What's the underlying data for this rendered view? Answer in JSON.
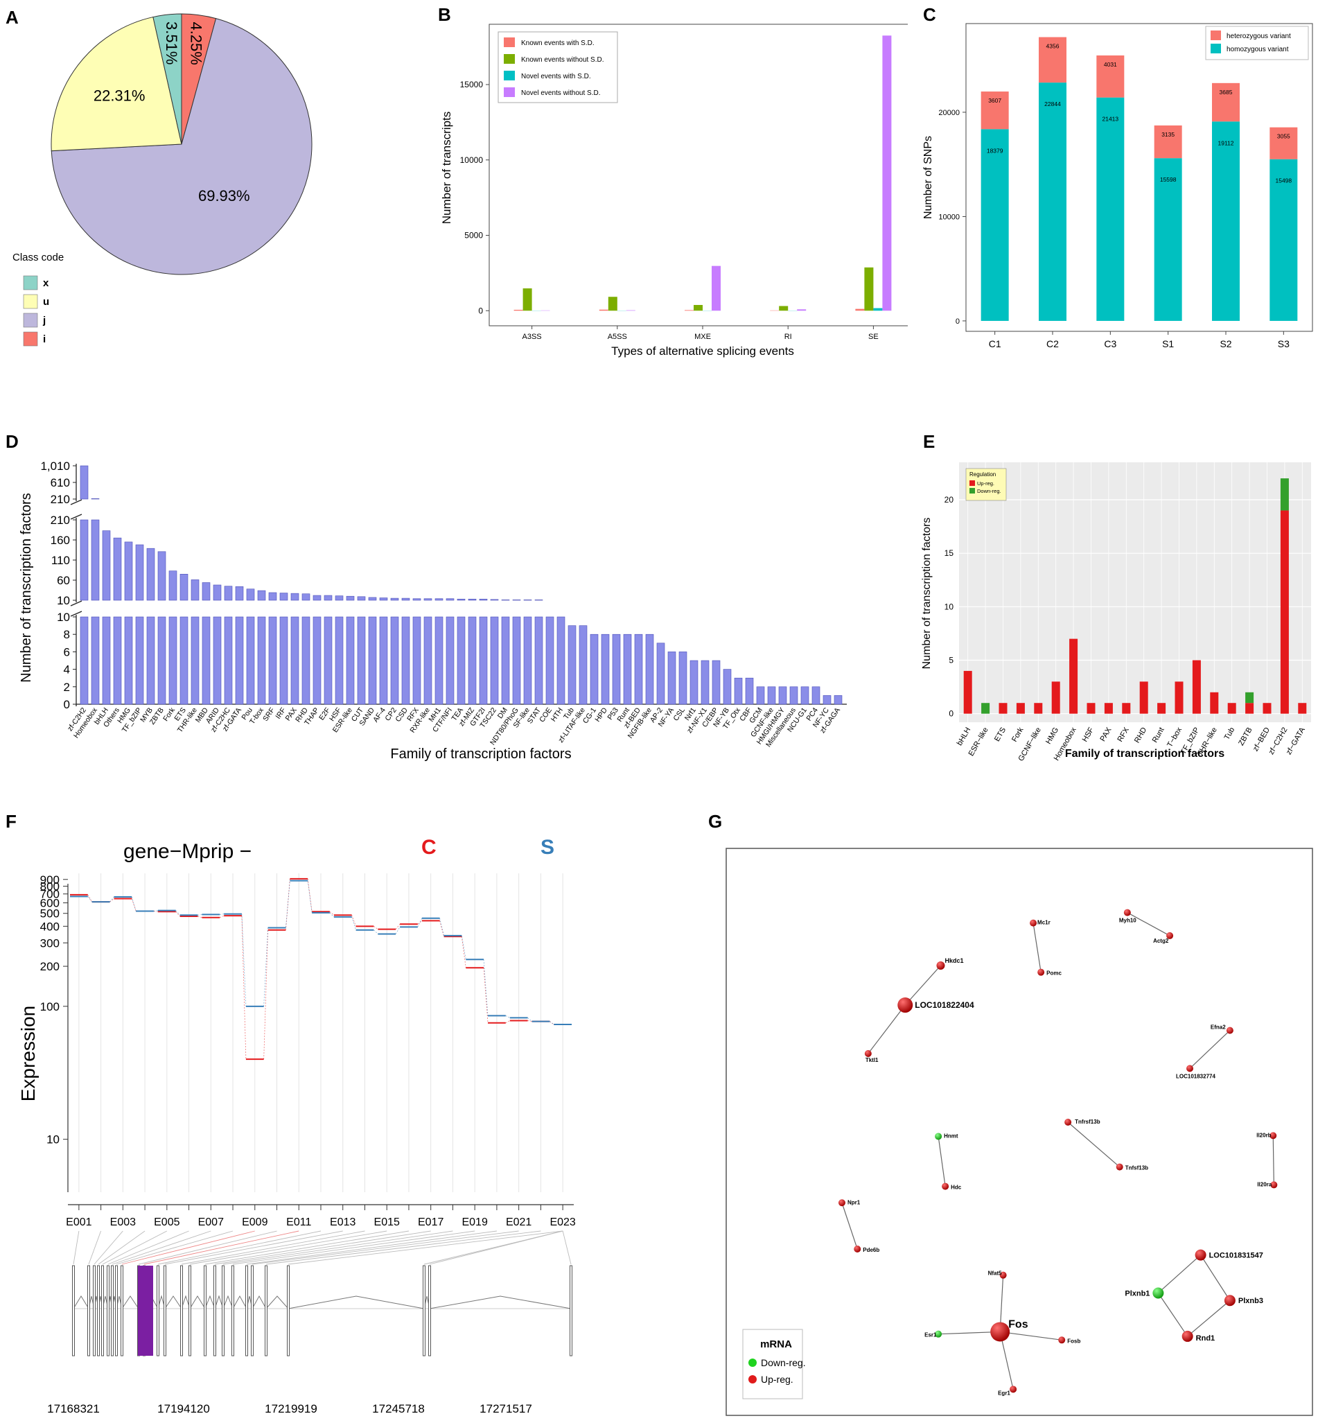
{
  "panels": {
    "a": "A",
    "b": "B",
    "c": "C",
    "d": "D",
    "e": "E",
    "f": "F",
    "g": "G"
  },
  "chart_data": [
    {
      "id": "A",
      "type": "pie",
      "legend_title": "Class code",
      "slices": [
        {
          "label": "i",
          "value": 4.25,
          "text": "4.25%",
          "color": "#f8776c"
        },
        {
          "label": "j",
          "value": 69.93,
          "text": "69.93%",
          "color": "#bdb7dc"
        },
        {
          "label": "u",
          "value": 22.31,
          "text": "22.31%",
          "color": "#fefeb5"
        },
        {
          "label": "x",
          "value": 3.51,
          "text": "3.51%",
          "color": "#8dd3c7"
        }
      ],
      "legend": [
        {
          "label": "x",
          "color": "#8dd3c7"
        },
        {
          "label": "u",
          "color": "#fefeb5"
        },
        {
          "label": "j",
          "color": "#bdb7dc"
        },
        {
          "label": "i",
          "color": "#f8776c"
        }
      ]
    },
    {
      "id": "B",
      "type": "bar",
      "xlabel": "Types of alternative splicing events",
      "ylabel": "Number of transcripts",
      "categories": [
        "A3SS",
        "A5SS",
        "MXE",
        "RI",
        "SE"
      ],
      "ylim": [
        -1000,
        19000
      ],
      "yticks": [
        0,
        5000,
        10000,
        15000
      ],
      "series": [
        {
          "name": "Known events with S.D.",
          "color": "#f8766d",
          "values": [
            60,
            70,
            40,
            20,
            120
          ]
        },
        {
          "name": "Known events without S.D.",
          "color": "#7cae00",
          "values": [
            1480,
            920,
            380,
            310,
            2870
          ]
        },
        {
          "name": "Novel events with S.D.",
          "color": "#00bfc4",
          "values": [
            10,
            10,
            10,
            10,
            170
          ]
        },
        {
          "name": "Novel events without S.D.",
          "color": "#c77cff",
          "values": [
            20,
            30,
            2970,
            90,
            18250
          ]
        }
      ]
    },
    {
      "id": "C",
      "type": "bar",
      "stacked": true,
      "ylabel": "Number of SNPs",
      "categories": [
        "C1",
        "C2",
        "C3",
        "S1",
        "S2",
        "S3"
      ],
      "ylim": [
        -1000,
        28500
      ],
      "yticks": [
        0,
        10000,
        20000
      ],
      "series": [
        {
          "name": "homozygous variant",
          "color": "#00c0c0",
          "values": [
            18379,
            22844,
            21413,
            15598,
            19112,
            15498
          ]
        },
        {
          "name": "heterozygous variant",
          "color": "#f8766d",
          "values": [
            3607,
            4356,
            4031,
            3135,
            3685,
            3055
          ]
        }
      ],
      "legend": [
        "heterozygous variant",
        "homozygous variant"
      ]
    },
    {
      "id": "D",
      "type": "bar",
      "xlabel": "Family of transcription factors",
      "ylabel": "Number of transcription factors",
      "broken_axis": {
        "segments": [
          {
            "range": [
              210,
              1010
            ],
            "ticks": [
              "1,010",
              "610",
              "210"
            ]
          },
          {
            "range": [
              10,
              210
            ],
            "ticks": [
              "210",
              "160",
              "110",
              "60",
              "10"
            ]
          },
          {
            "range": [
              0,
              10
            ],
            "ticks": [
              "10",
              "8",
              "6",
              "4",
              "2",
              "0"
            ]
          }
        ]
      },
      "categories": [
        "zf-C2H2",
        "Homeobox",
        "bHLH",
        "Others",
        "HMG",
        "TF_bZIP",
        "MYB",
        "ZBTB",
        "Fork",
        "ETS",
        "THR-like",
        "MBD",
        "ARID",
        "zf-C2HC",
        "zf-GATA",
        "Pou",
        "T-box",
        "SRF",
        "IRF",
        "PAX",
        "RHD",
        "THAP",
        "E2F",
        "HSF",
        "ESR-like",
        "CUT",
        "SAND",
        "AF-4",
        "CP2",
        "CSD",
        "RFX",
        "RXR-like",
        "MH1",
        "CTF/NFI",
        "TEA",
        "zf-MIZ",
        "GTF2I",
        "TSC22",
        "DM",
        "NDT80/PhoG",
        "SF-like",
        "STAT",
        "COE",
        "HTH",
        "Tub",
        "zf-LITAF-like",
        "CG-1",
        "HPD",
        "P53",
        "Runt",
        "zf-BED",
        "NGFIB-like",
        "AP-2",
        "NF-YA",
        "CSL",
        "Nrf1",
        "zf-NF-X1",
        "C/EBP",
        "NF-YB",
        "TF_Otx",
        "CBF",
        "GCM",
        "GCNF-like",
        "HMGI/HMGY",
        "Miscellaneous",
        "NCU-G1",
        "PC4",
        "NF-YC",
        "zf-GAGA"
      ],
      "values": [
        1010,
        220,
        183,
        165,
        155,
        148,
        139,
        131,
        83,
        75,
        61,
        54,
        48,
        45,
        44,
        38,
        34,
        29,
        28,
        27,
        26,
        22,
        22,
        21,
        20,
        19,
        17,
        16,
        15,
        15,
        14,
        14,
        14,
        14,
        13,
        13,
        13,
        12,
        11,
        11,
        11,
        11,
        10,
        10,
        9,
        9,
        8,
        8,
        8,
        8,
        8,
        8,
        7,
        6,
        6,
        5,
        5,
        5,
        4,
        3,
        3,
        2,
        2,
        2,
        2,
        2,
        2,
        1,
        1
      ]
    },
    {
      "id": "E",
      "type": "bar",
      "stacked": true,
      "xlabel": "Family of transcription factors",
      "ylabel": "Number of transcription factors",
      "legend_title": "Regulation",
      "ylim": [
        -0.8,
        23.5
      ],
      "yticks": [
        0,
        5,
        10,
        15,
        20
      ],
      "categories": [
        "bHLH",
        "ESR−like",
        "ETS",
        "Fork",
        "GCNF−like",
        "HMG",
        "Homeobox",
        "HSF",
        "PAX",
        "RFX",
        "RHD",
        "Runt",
        "T−box",
        "TF_bZIP",
        "THR−like",
        "Tub",
        "ZBTB",
        "zf−BED",
        "zf−C2H2",
        "zf−GATA"
      ],
      "series": [
        {
          "name": "Up-reg.",
          "color": "#e41a1c",
          "values": [
            4,
            0,
            1,
            1,
            1,
            3,
            7,
            1,
            1,
            1,
            3,
            1,
            3,
            5,
            2,
            1,
            1,
            1,
            19,
            1
          ]
        },
        {
          "name": "Down-reg.",
          "color": "#33a02c",
          "values": [
            0,
            1,
            0,
            0,
            0,
            0,
            0,
            0,
            0,
            0,
            0,
            0,
            0,
            0,
            0,
            0,
            1,
            0,
            3,
            0
          ]
        }
      ]
    },
    {
      "id": "F",
      "type": "line",
      "title": "gene−Mprip −",
      "ylabel": "Expression",
      "yscale": "log",
      "ytick_labels": [
        "900",
        "800",
        "700",
        "600",
        "500",
        "400",
        "300",
        "200",
        "100",
        "10"
      ],
      "categories": [
        "E001",
        "E002",
        "E003",
        "E004",
        "E005",
        "E006",
        "E007",
        "E008",
        "E009",
        "E010",
        "E011",
        "E012",
        "E013",
        "E014",
        "E015",
        "E016",
        "E017",
        "E018",
        "E019",
        "E020",
        "E021",
        "E022",
        "E023"
      ],
      "xtick_labels": [
        "E001",
        "E003",
        "E005",
        "E007",
        "E009",
        "E011",
        "E013",
        "E015",
        "E017",
        "E019",
        "E021",
        "E023"
      ],
      "series": [
        {
          "name": "C",
          "color": "#e41a1c",
          "values": [
            690,
            610,
            645,
            520,
            515,
            475,
            465,
            480,
            40,
            375,
            910,
            515,
            485,
            400,
            380,
            415,
            440,
            335,
            195,
            75,
            78,
            77,
            73
          ]
        },
        {
          "name": "S",
          "color": "#377eb8",
          "values": [
            670,
            610,
            665,
            520,
            525,
            485,
            490,
            495,
            100,
            390,
            880,
            505,
            470,
            375,
            350,
            395,
            460,
            340,
            225,
            85,
            82,
            77,
            73
          ]
        }
      ],
      "coordinates": [
        "17168321",
        "17194120",
        "17219919",
        "17245718",
        "17271517"
      ]
    },
    {
      "id": "G",
      "type": "network",
      "legend_title": "mRNA",
      "legend": [
        {
          "label": "Down-reg.",
          "color": "#1fd31f"
        },
        {
          "label": "Up-reg.",
          "color": "#e01b1b"
        }
      ],
      "nodes": [
        "Hkdc1",
        "LOC101822404",
        "Tktl1",
        "Mc1r",
        "Pomc",
        "Myh10",
        "Actg2",
        "Efna2",
        "LOC101832774",
        "Tnfrsf13b",
        "Tnfsf13b",
        "Hnmt",
        "Hdc",
        "Il20rb",
        "Il20ra",
        "Npr1",
        "Pde6b",
        "Nfat5",
        "Fos",
        "Fosb",
        "Esr1",
        "Egr1",
        "LOC101831547",
        "Plxnb1",
        "Plxnb3",
        "Rnd1"
      ]
    }
  ]
}
